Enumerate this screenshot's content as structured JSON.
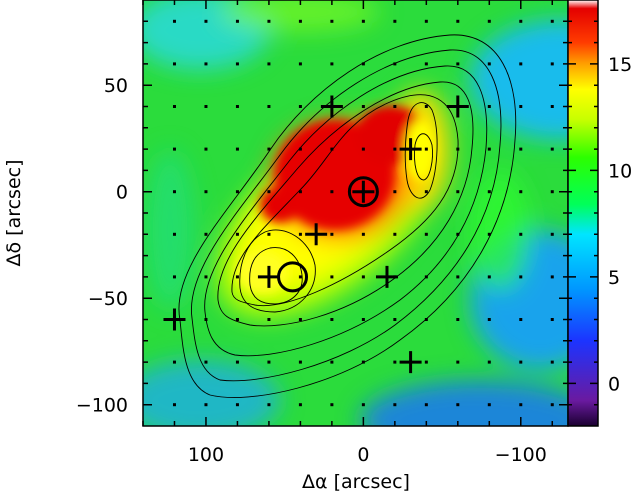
{
  "chart_data": {
    "type": "heatmap",
    "xlabel": "Δα [arcsec]",
    "ylabel": "Δδ [arcsec]",
    "xlim": [
      140,
      -130
    ],
    "ylim": [
      -110,
      90
    ],
    "x_ticks": [
      {
        "value": 100,
        "label": "100"
      },
      {
        "value": 0,
        "label": "0"
      },
      {
        "value": -100,
        "label": "−100"
      }
    ],
    "y_ticks": [
      {
        "value": 50,
        "label": "50"
      },
      {
        "value": 0,
        "label": "0"
      },
      {
        "value": -50,
        "label": "−50"
      },
      {
        "value": -100,
        "label": "−100"
      }
    ],
    "colorbar": {
      "range": [
        -2,
        18
      ],
      "ticks": [
        {
          "value": 15,
          "label": "15"
        },
        {
          "value": 10,
          "label": "10"
        },
        {
          "value": 5,
          "label": "5"
        },
        {
          "value": 0,
          "label": "0"
        }
      ],
      "colormap": "rainbow (black-purple-blue-cyan-green-yellow-orange-red-white)"
    },
    "emission_peaks": [
      {
        "x": 5,
        "y": 3,
        "value": 17.5
      },
      {
        "x": 35,
        "y": 25,
        "value": 17
      },
      {
        "x": -35,
        "y": 20,
        "value": 16
      },
      {
        "x": 55,
        "y": -30,
        "value": 14
      }
    ],
    "crosses": [
      {
        "x": 20,
        "y": 40
      },
      {
        "x": -60,
        "y": 40
      },
      {
        "x": -30,
        "y": 20
      },
      {
        "x": 0,
        "y": 0
      },
      {
        "x": 30,
        "y": -20
      },
      {
        "x": 60,
        "y": -40
      },
      {
        "x": -15,
        "y": -40
      },
      {
        "x": 120,
        "y": -60
      },
      {
        "x": -30,
        "y": -80
      }
    ],
    "circles": [
      {
        "x": 0,
        "y": 0
      },
      {
        "x": 45,
        "y": -40
      }
    ],
    "grid_dots": {
      "x": [
        120,
        100,
        80,
        60,
        40,
        20,
        0,
        -20,
        -40,
        -60,
        -80,
        -100,
        -120
      ],
      "y": [
        80,
        60,
        40,
        20,
        0,
        -20,
        -40,
        -60,
        -80,
        -100
      ]
    },
    "contours": "nested black contours around the bright emission region"
  }
}
